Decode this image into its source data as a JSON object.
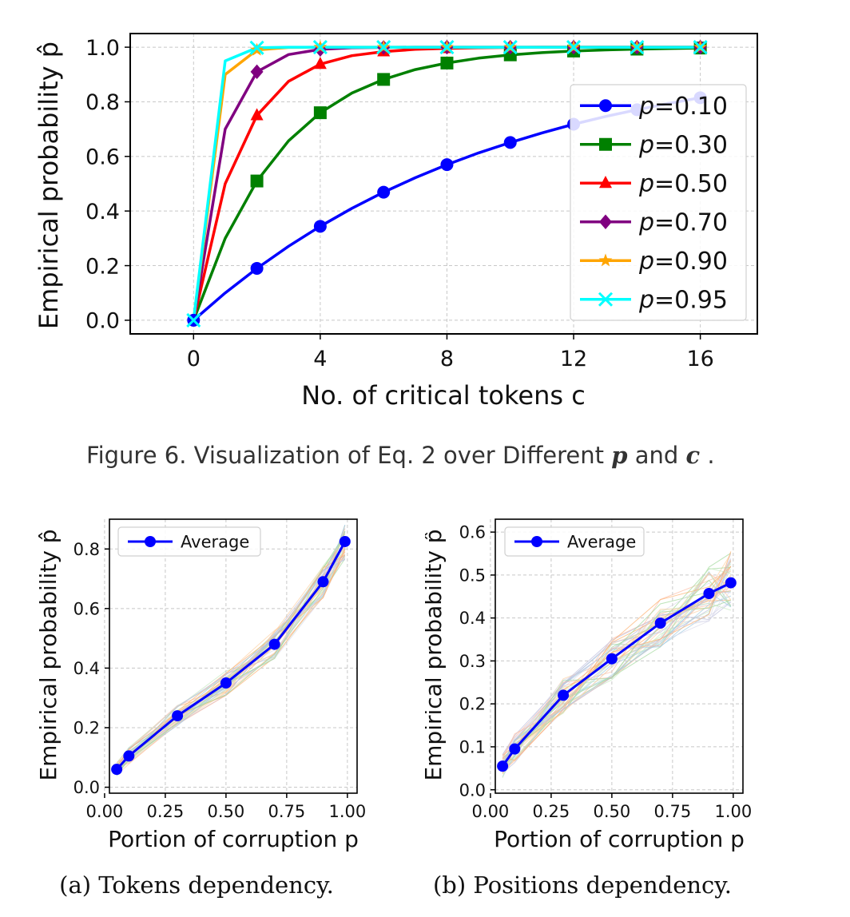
{
  "chart_data": [
    {
      "type": "line",
      "xlabel": "No. of critical tokens c",
      "ylabel": "Empirical probability p̂",
      "xlim": [
        -2,
        17.8
      ],
      "ylim": [
        -0.05,
        1.05
      ],
      "xticks": [
        0,
        4,
        8,
        12,
        16
      ],
      "yticks": [
        0.0,
        0.2,
        0.4,
        0.6,
        0.8,
        1.0
      ],
      "grid": true,
      "legend_position": "center-right",
      "series": [
        {
          "name": "p=0.10",
          "color": "#0000ff",
          "marker": "circle",
          "x": [
            0,
            1,
            2,
            3,
            4,
            5,
            6,
            7,
            8,
            9,
            10,
            11,
            12,
            13,
            14,
            15,
            16
          ],
          "y": [
            0,
            0.1,
            0.19,
            0.271,
            0.344,
            0.41,
            0.469,
            0.522,
            0.57,
            0.613,
            0.651,
            0.686,
            0.718,
            0.746,
            0.771,
            0.794,
            0.815
          ],
          "marker_x": [
            0,
            2,
            4,
            6,
            8,
            10,
            12,
            14,
            16
          ]
        },
        {
          "name": "p=0.30",
          "color": "#008000",
          "marker": "square",
          "x": [
            0,
            1,
            2,
            3,
            4,
            5,
            6,
            7,
            8,
            9,
            10,
            11,
            12,
            13,
            14,
            15,
            16
          ],
          "y": [
            0,
            0.3,
            0.51,
            0.657,
            0.76,
            0.832,
            0.882,
            0.918,
            0.942,
            0.96,
            0.972,
            0.98,
            0.986,
            0.99,
            0.993,
            0.995,
            0.997
          ],
          "marker_x": [
            2,
            4,
            6,
            8,
            10,
            12,
            14,
            16
          ]
        },
        {
          "name": "p=0.50",
          "color": "#ff0000",
          "marker": "triangle",
          "x": [
            0,
            1,
            2,
            3,
            4,
            5,
            6,
            7,
            8,
            9,
            10,
            11,
            12,
            13,
            14,
            15,
            16
          ],
          "y": [
            0,
            0.5,
            0.75,
            0.875,
            0.938,
            0.969,
            0.984,
            0.992,
            0.996,
            0.998,
            0.999,
            1,
            1,
            1,
            1,
            1,
            1
          ],
          "marker_x": [
            2,
            4,
            6,
            8,
            10,
            12,
            14,
            16
          ]
        },
        {
          "name": "p=0.70",
          "color": "#800080",
          "marker": "diamond",
          "x": [
            0,
            1,
            2,
            3,
            4,
            5,
            6,
            7,
            8,
            9,
            10,
            11,
            12,
            13,
            14,
            15,
            16
          ],
          "y": [
            0,
            0.7,
            0.91,
            0.973,
            0.992,
            0.998,
            0.999,
            1,
            1,
            1,
            1,
            1,
            1,
            1,
            1,
            1,
            1
          ],
          "marker_x": [
            2,
            4,
            6,
            8,
            10,
            12,
            14,
            16
          ]
        },
        {
          "name": "p=0.90",
          "color": "#ffa500",
          "marker": "star",
          "x": [
            0,
            1,
            2,
            3,
            4,
            5,
            6,
            7,
            8,
            9,
            10,
            11,
            12,
            13,
            14,
            15,
            16
          ],
          "y": [
            0,
            0.9,
            0.99,
            0.999,
            1,
            1,
            1,
            1,
            1,
            1,
            1,
            1,
            1,
            1,
            1,
            1,
            1
          ],
          "marker_x": [
            2,
            4,
            6,
            8,
            10,
            12,
            14,
            16
          ]
        },
        {
          "name": "p=0.95",
          "color": "#00ffff",
          "marker": "x",
          "x": [
            0,
            1,
            2,
            3,
            4,
            5,
            6,
            7,
            8,
            9,
            10,
            11,
            12,
            13,
            14,
            15,
            16
          ],
          "y": [
            0,
            0.95,
            0.998,
            1,
            1,
            1,
            1,
            1,
            1,
            1,
            1,
            1,
            1,
            1,
            1,
            1,
            1
          ],
          "marker_x": [
            0,
            2,
            4,
            6,
            8,
            10,
            12,
            14,
            16
          ]
        }
      ]
    },
    {
      "type": "line",
      "xlabel": "Portion of corruption p",
      "ylabel": "Empirical probability p̂",
      "xlim": [
        0.02,
        1.04
      ],
      "ylim": [
        -0.02,
        0.9
      ],
      "xticks": [
        0.0,
        0.25,
        0.5,
        0.75,
        1.0
      ],
      "xtick_labels": [
        "0.00",
        "0.25",
        "0.50",
        "0.75",
        "1.00"
      ],
      "yticks": [
        0.0,
        0.2,
        0.4,
        0.6,
        0.8
      ],
      "grid": true,
      "legend_position": "top-left",
      "series": [
        {
          "name": "Average",
          "color": "#0000ff",
          "marker": "circle",
          "x": [
            0.05,
            0.1,
            0.3,
            0.5,
            0.7,
            0.9,
            0.99
          ],
          "y": [
            0.06,
            0.105,
            0.24,
            0.35,
            0.48,
            0.69,
            0.825
          ]
        }
      ],
      "background_traces": 40
    },
    {
      "type": "line",
      "xlabel": "Portion of corruption p",
      "ylabel": "Empirical probability p̂",
      "xlim": [
        0.02,
        1.04
      ],
      "ylim": [
        -0.008,
        0.63
      ],
      "xticks": [
        0.0,
        0.25,
        0.5,
        0.75,
        1.0
      ],
      "xtick_labels": [
        "0.00",
        "0.25",
        "0.50",
        "0.75",
        "1.00"
      ],
      "yticks": [
        0.0,
        0.1,
        0.2,
        0.3,
        0.4,
        0.5,
        0.6
      ],
      "grid": true,
      "legend_position": "top-left",
      "series": [
        {
          "name": "Average",
          "color": "#0000ff",
          "marker": "circle",
          "x": [
            0.05,
            0.1,
            0.3,
            0.5,
            0.7,
            0.9,
            0.99
          ],
          "y": [
            0.055,
            0.095,
            0.22,
            0.305,
            0.388,
            0.457,
            0.482
          ]
        }
      ],
      "background_traces": 40
    }
  ],
  "captions": {
    "figure6_prefix": "Figure 6. Visualization of Eq. 2 over Different ",
    "figure6_p": "p",
    "figure6_and": " and ",
    "figure6_c": "c",
    "figure6_end": " .",
    "sub_a": "(a) Tokens dependency.",
    "sub_b": "(b) Positions dependency."
  }
}
